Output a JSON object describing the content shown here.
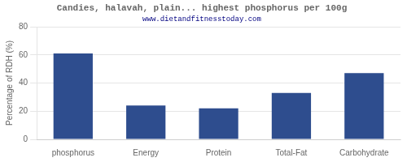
{
  "chart_data": {
    "type": "bar",
    "title": "Candies, halavah, plain... highest phosphorus per 100g",
    "subtitle": "www.dietandfitnesstoday.com",
    "categories": [
      "phosphorus",
      "Energy",
      "Protein",
      "Total-Fat",
      "Carbohydrate"
    ],
    "values": [
      61,
      24,
      22,
      33,
      47
    ],
    "color": "#2e4d8e",
    "ylabel": "Percentage of RDH (%)",
    "ylim": [
      0,
      80
    ],
    "yticks": [
      0,
      20,
      40,
      60,
      80
    ],
    "grid": true
  }
}
